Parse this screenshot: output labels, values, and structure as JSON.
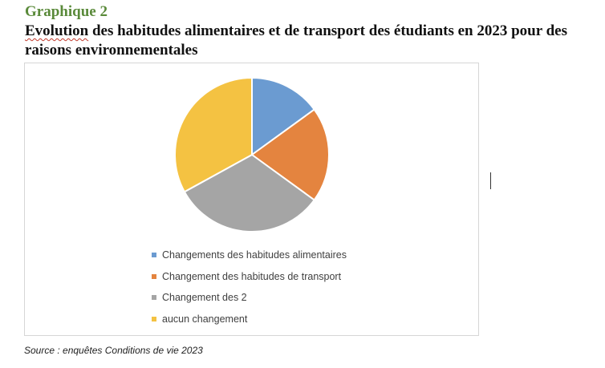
{
  "figure": {
    "label": "Graphique 2",
    "title_first_word": "Evolution",
    "title_rest": " des habitudes alimentaires et de transport des étudiants en 2023 pour des raisons environnementales",
    "source": "Source : enquêtes Conditions de vie 2023"
  },
  "chart_data": {
    "type": "pie",
    "categories": [
      "Changements des habitudes alimentaires",
      "Changement des habitudes de transport",
      "Changement des 2",
      "aucun changement"
    ],
    "values": [
      15,
      20,
      32,
      33
    ],
    "colors": [
      "#6b9bd1",
      "#e4843f",
      "#a5a5a5",
      "#f4c242"
    ],
    "legend_position": "bottom"
  }
}
